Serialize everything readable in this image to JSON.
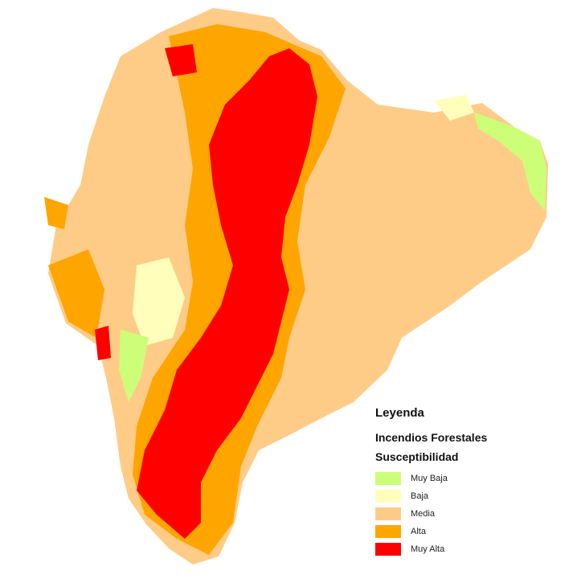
{
  "legend": {
    "title": "Leyenda",
    "subtitle": "Incendios Forestales",
    "category": "Susceptibilidad",
    "items": [
      {
        "label": "Muy Baja",
        "color": "#ccff77"
      },
      {
        "label": "Baja",
        "color": "#ffffbb"
      },
      {
        "label": "Media",
        "color": "#ffcc88"
      },
      {
        "label": "Alta",
        "color": "#ffa500"
      },
      {
        "label": "Muy Alta",
        "color": "#ff0000"
      }
    ]
  }
}
